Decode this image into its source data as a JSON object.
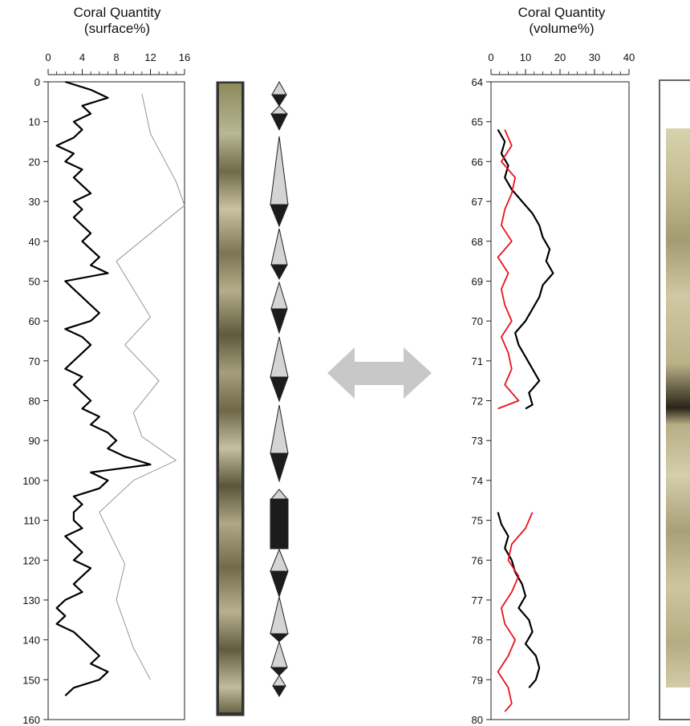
{
  "panels": {
    "left_title_line1": "Coral Quantity",
    "left_title_line2": "(surface%)",
    "right_title_line1": "Coral Quantity",
    "right_title_line2": "(volume%)"
  },
  "colors": {
    "series_black": "#000000",
    "series_grey": "#8a8a8a",
    "series_red": "#e8141e",
    "arrow": "#c8c8c8",
    "triangle_light": "#d4d4d4",
    "triangle_dark": "#1c1c1c"
  },
  "icons": {
    "correlation_arrow": "double-headed-arrow-icon",
    "cycle_symbols": "fining-coarsening-triangle-icons"
  },
  "chart_data": [
    {
      "type": "line",
      "orientation": "vertical-depth-log",
      "title": "Coral Quantity (surface%)",
      "xlabel": "Coral Quantity (surface%)",
      "ylabel": "",
      "xlim": [
        0,
        16
      ],
      "x_ticks": [
        0,
        4,
        8,
        12,
        16
      ],
      "ylim": [
        0,
        160
      ],
      "y_ticks": [
        0,
        10,
        20,
        30,
        40,
        50,
        60,
        70,
        80,
        90,
        100,
        110,
        120,
        130,
        140,
        150,
        160
      ],
      "y_inverted": true,
      "grid": false,
      "series": [
        {
          "color": "black",
          "depth": [
            0,
            2,
            4,
            6,
            8,
            10,
            12,
            14,
            16,
            18,
            20,
            22,
            24,
            26,
            28,
            30,
            32,
            34,
            36,
            38,
            40,
            42,
            44,
            46,
            48,
            50,
            52,
            54,
            56,
            58,
            60,
            62,
            64,
            66,
            68,
            70,
            72,
            74,
            76,
            78,
            80,
            82,
            84,
            86,
            88,
            90,
            92,
            94,
            96,
            98,
            100,
            102,
            104,
            106,
            108,
            110,
            112,
            114,
            116,
            118,
            120,
            122,
            124,
            126,
            128,
            130,
            132,
            134,
            136,
            138,
            140,
            142,
            144,
            146,
            148,
            150,
            152,
            154
          ],
          "values": [
            2,
            5,
            7,
            4,
            5,
            3,
            4,
            3,
            1,
            3,
            2,
            4,
            3,
            4,
            5,
            3,
            4,
            3,
            4,
            5,
            4,
            5,
            6,
            5,
            7,
            2,
            3,
            4,
            5,
            6,
            5,
            2,
            4,
            5,
            4,
            3,
            2,
            4,
            3,
            4,
            5,
            4,
            6,
            5,
            7,
            8,
            7,
            9,
            12,
            5,
            7,
            6,
            3,
            4,
            3,
            3,
            4,
            2,
            3,
            4,
            3,
            5,
            4,
            3,
            4,
            2,
            1,
            2,
            1,
            3,
            4,
            5,
            6,
            5,
            7,
            6,
            3,
            2
          ]
        },
        {
          "color": "grey",
          "depth": [
            3,
            13,
            25,
            31,
            45,
            59,
            66,
            75,
            83,
            89,
            95,
            100,
            108,
            121,
            130,
            142,
            150
          ],
          "values": [
            11,
            12,
            15,
            16,
            8,
            12,
            9,
            13,
            10,
            11,
            15,
            10,
            6,
            9,
            8,
            10,
            12
          ]
        }
      ]
    },
    {
      "type": "line",
      "orientation": "vertical-depth-log",
      "title": "Coral Quantity (volume%)",
      "xlabel": "Coral Quantity (volume%)",
      "ylabel": "",
      "xlim": [
        0,
        40
      ],
      "x_ticks": [
        0,
        10,
        20,
        30,
        40
      ],
      "ylim": [
        64,
        80
      ],
      "y_ticks": [
        64,
        65,
        66,
        67,
        68,
        69,
        70,
        71,
        72,
        73,
        74,
        75,
        76,
        77,
        78,
        79,
        80
      ],
      "y_inverted": true,
      "grid": false,
      "series": [
        {
          "color": "black",
          "depth": [
            65.2,
            65.5,
            65.8,
            66.1,
            66.4,
            66.7,
            67.0,
            67.3,
            67.6,
            67.9,
            68.2,
            68.5,
            68.8,
            69.1,
            69.4,
            69.7,
            70.0,
            70.3,
            70.6,
            70.9,
            71.2,
            71.5,
            71.8,
            72.1,
            72.2
          ],
          "values": [
            2,
            4,
            3,
            5,
            4,
            6,
            9,
            12,
            14,
            15,
            17,
            16,
            18,
            15,
            14,
            12,
            10,
            7,
            8,
            10,
            12,
            14,
            11,
            12,
            10
          ]
        },
        {
          "color": "red",
          "depth": [
            65.2,
            65.6,
            66.0,
            66.4,
            66.8,
            67.2,
            67.6,
            68.0,
            68.4,
            68.8,
            69.2,
            69.6,
            70.0,
            70.4,
            70.8,
            71.2,
            71.6,
            72.0,
            72.2
          ],
          "values": [
            4,
            6,
            3,
            7,
            6,
            4,
            3,
            6,
            2,
            5,
            3,
            4,
            6,
            3,
            5,
            6,
            4,
            8,
            2
          ]
        },
        {
          "color": "black",
          "depth": [
            74.8,
            75.1,
            75.4,
            75.7,
            76.0,
            76.3,
            76.6,
            76.9,
            77.2,
            77.5,
            77.8,
            78.1,
            78.4,
            78.7,
            79.0,
            79.2
          ],
          "values": [
            2,
            3,
            5,
            4,
            6,
            7,
            9,
            10,
            8,
            11,
            12,
            10,
            13,
            14,
            13,
            11
          ]
        },
        {
          "color": "red",
          "depth": [
            74.8,
            75.2,
            75.6,
            76.0,
            76.4,
            76.8,
            77.2,
            77.6,
            78.0,
            78.4,
            78.8,
            79.2,
            79.6,
            79.8
          ],
          "values": [
            12,
            10,
            6,
            5,
            8,
            6,
            3,
            4,
            7,
            5,
            2,
            5,
            6,
            4
          ]
        }
      ]
    }
  ]
}
